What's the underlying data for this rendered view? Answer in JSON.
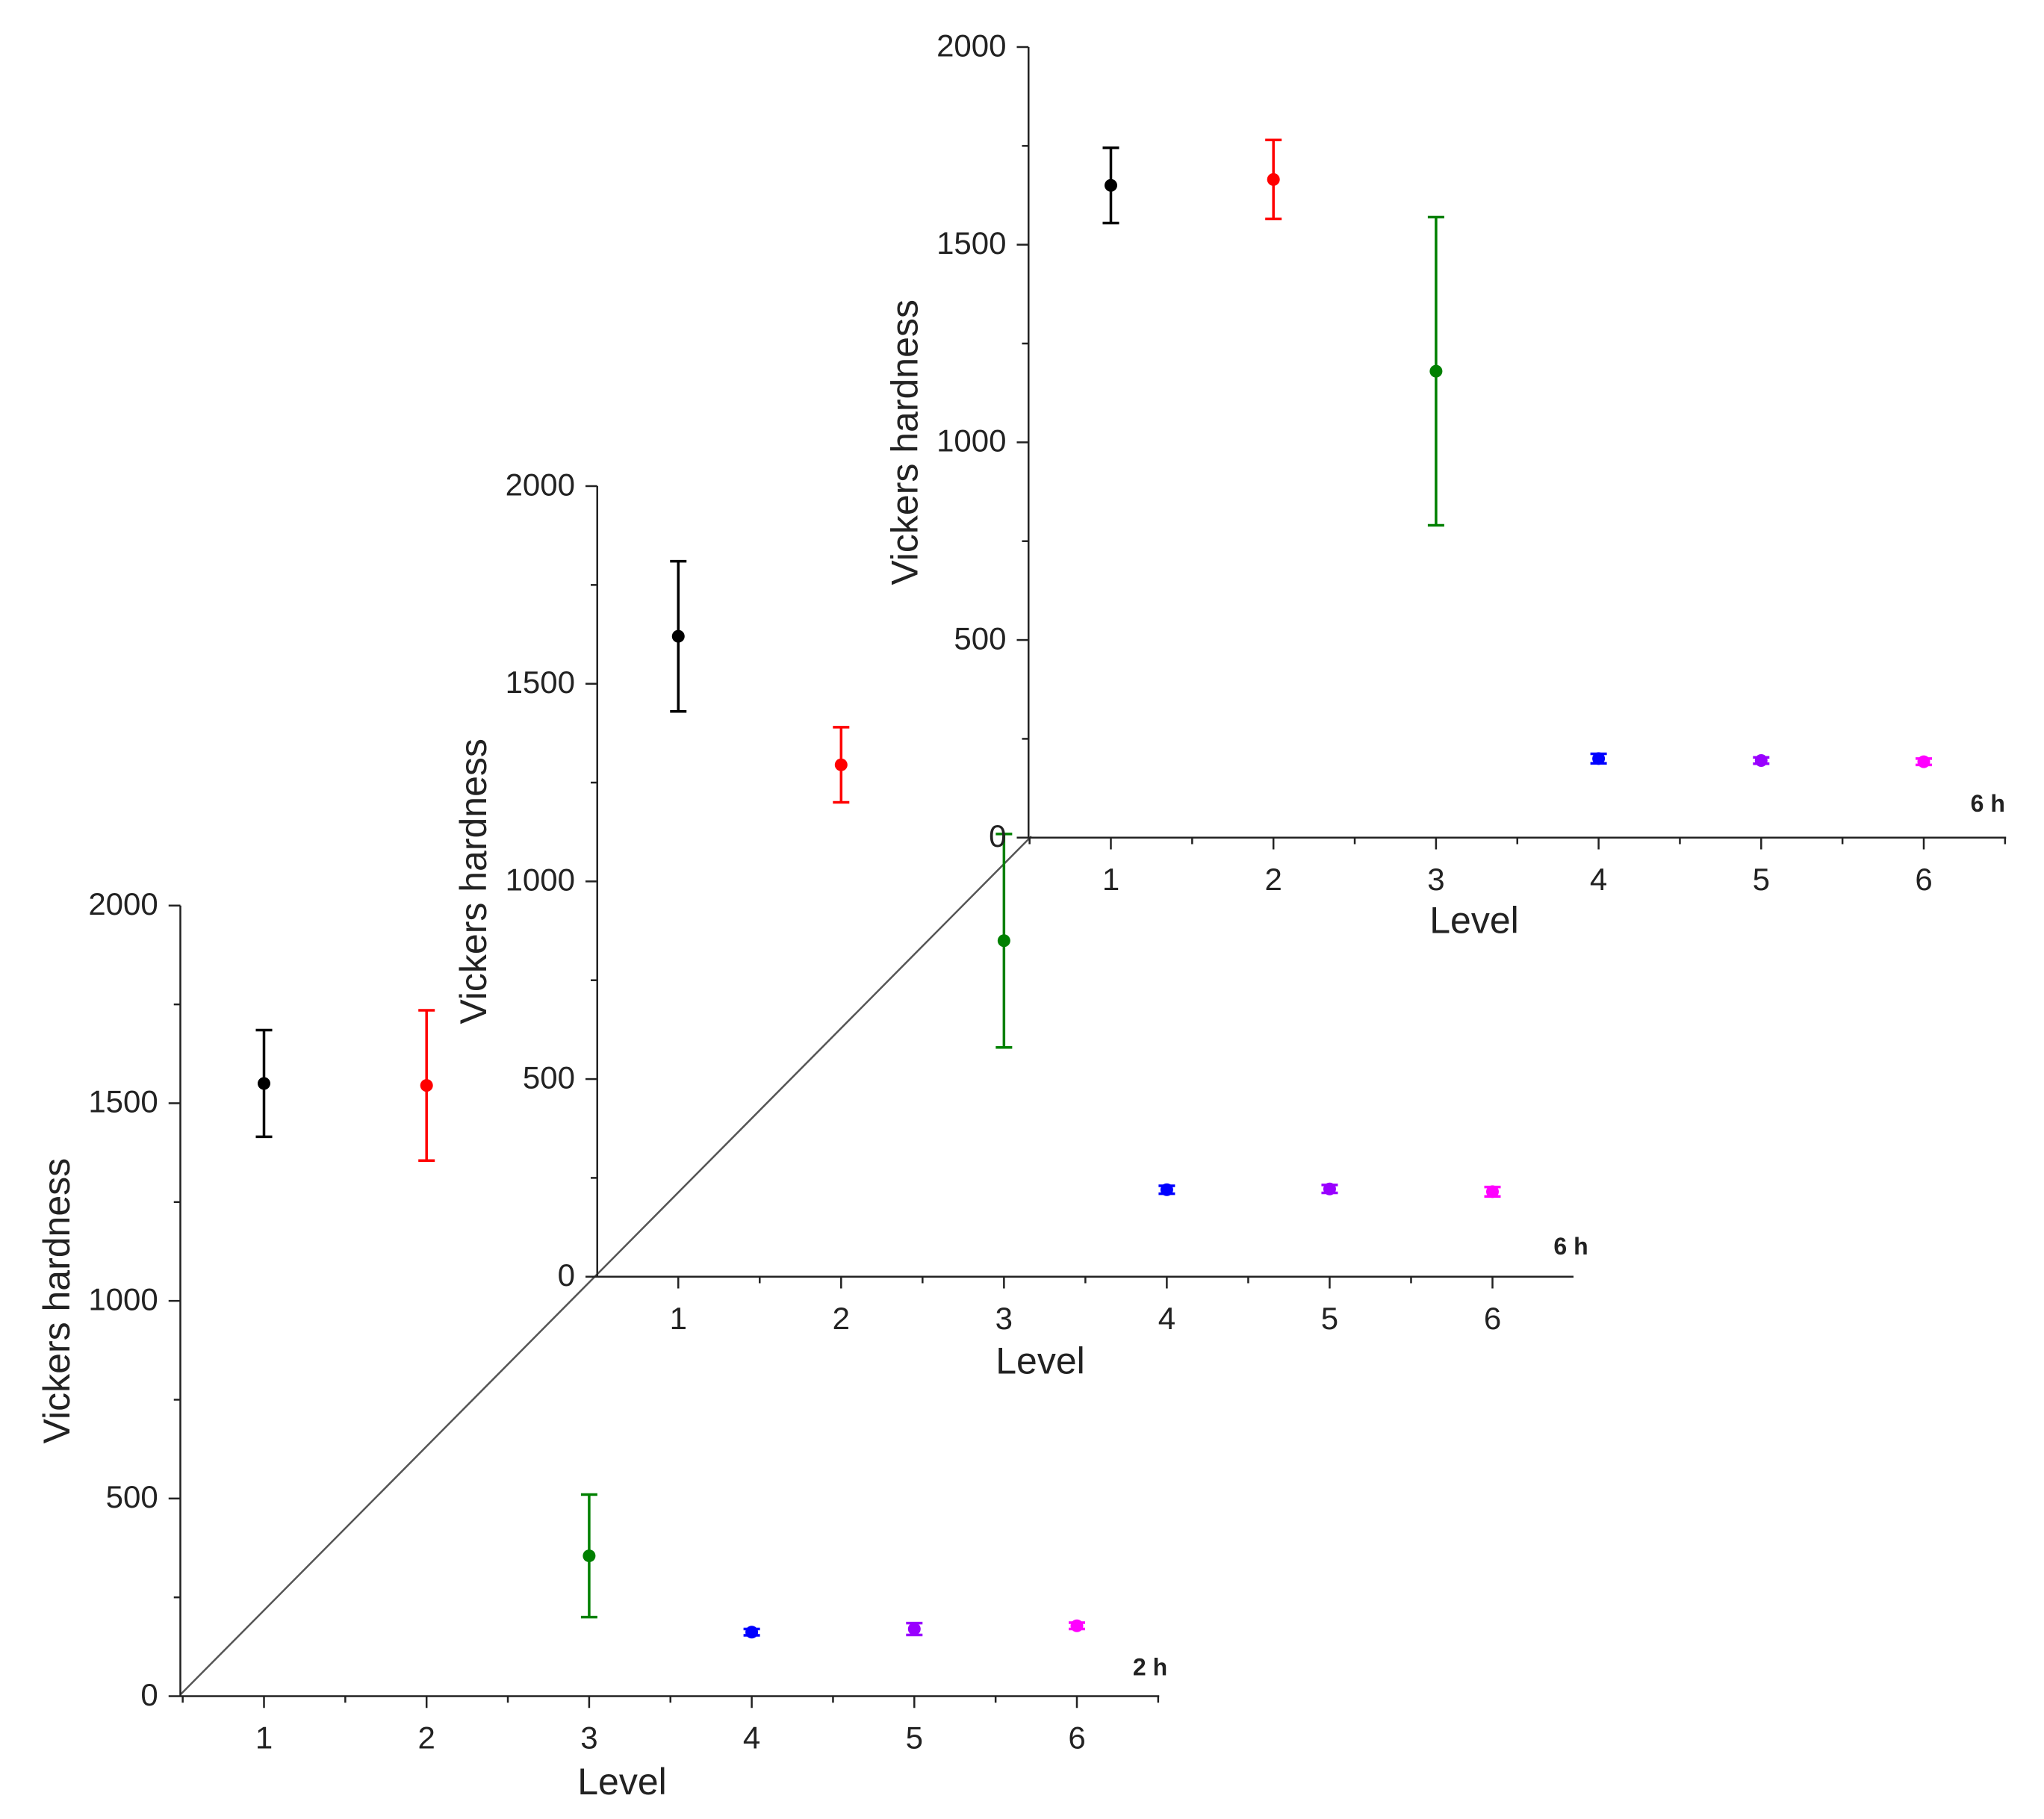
{
  "chart_data": [
    {
      "type": "scatter",
      "panel_label": "2 h",
      "xlabel": "Level",
      "ylabel": "Vickers hardness",
      "xlim": [
        0.5,
        6.5
      ],
      "ylim": [
        0,
        2000
      ],
      "x_ticks": [
        "1",
        "2",
        "3",
        "4",
        "5",
        "6"
      ],
      "y_ticks": [
        "0",
        "500",
        "1000",
        "1500",
        "2000"
      ],
      "points": [
        {
          "x": 1,
          "y": 1550,
          "err": 135,
          "color": "#000000"
        },
        {
          "x": 2,
          "y": 1545,
          "err": 190,
          "color": "#ff0000"
        },
        {
          "x": 3,
          "y": 355,
          "err": 155,
          "color": "#008000"
        },
        {
          "x": 4,
          "y": 162,
          "err": 8,
          "color": "#0000ff"
        },
        {
          "x": 5,
          "y": 170,
          "err": 15,
          "color": "#9900ff"
        },
        {
          "x": 6,
          "y": 178,
          "err": 8,
          "color": "#ff00ff"
        }
      ]
    },
    {
      "type": "scatter",
      "panel_label": "6 h",
      "xlabel": "Level",
      "ylabel": "Vickers hardness",
      "xlim": [
        0.5,
        6.5
      ],
      "ylim": [
        0,
        2000
      ],
      "x_ticks": [
        "1",
        "2",
        "3",
        "4",
        "5",
        "6"
      ],
      "y_ticks": [
        "0",
        "500",
        "1000",
        "1500",
        "2000"
      ],
      "points": [
        {
          "x": 1,
          "y": 1620,
          "err": 190,
          "color": "#000000"
        },
        {
          "x": 2,
          "y": 1295,
          "err": 95,
          "color": "#ff0000"
        },
        {
          "x": 3,
          "y": 850,
          "err": 270,
          "color": "#008000"
        },
        {
          "x": 4,
          "y": 220,
          "err": 10,
          "color": "#0000ff"
        },
        {
          "x": 5,
          "y": 222,
          "err": 10,
          "color": "#9900ff"
        },
        {
          "x": 6,
          "y": 215,
          "err": 12,
          "color": "#ff00ff"
        }
      ]
    },
    {
      "type": "scatter",
      "panel_label": "6 h",
      "xlabel": "Level",
      "ylabel": "Vickers hardness",
      "xlim": [
        0.5,
        6.5
      ],
      "ylim": [
        0,
        2000
      ],
      "x_ticks": [
        "1",
        "2",
        "3",
        "4",
        "5",
        "6"
      ],
      "y_ticks": [
        "0",
        "500",
        "1000",
        "1500",
        "2000"
      ],
      "points": [
        {
          "x": 1,
          "y": 1650,
          "err": 95,
          "color": "#000000"
        },
        {
          "x": 2,
          "y": 1665,
          "err": 100,
          "color": "#ff0000"
        },
        {
          "x": 3,
          "y": 1180,
          "err": 390,
          "color": "#008000"
        },
        {
          "x": 4,
          "y": 200,
          "err": 12,
          "color": "#0000ff"
        },
        {
          "x": 5,
          "y": 195,
          "err": 8,
          "color": "#9900ff"
        },
        {
          "x": 6,
          "y": 192,
          "err": 8,
          "color": "#ff00ff"
        }
      ]
    }
  ]
}
